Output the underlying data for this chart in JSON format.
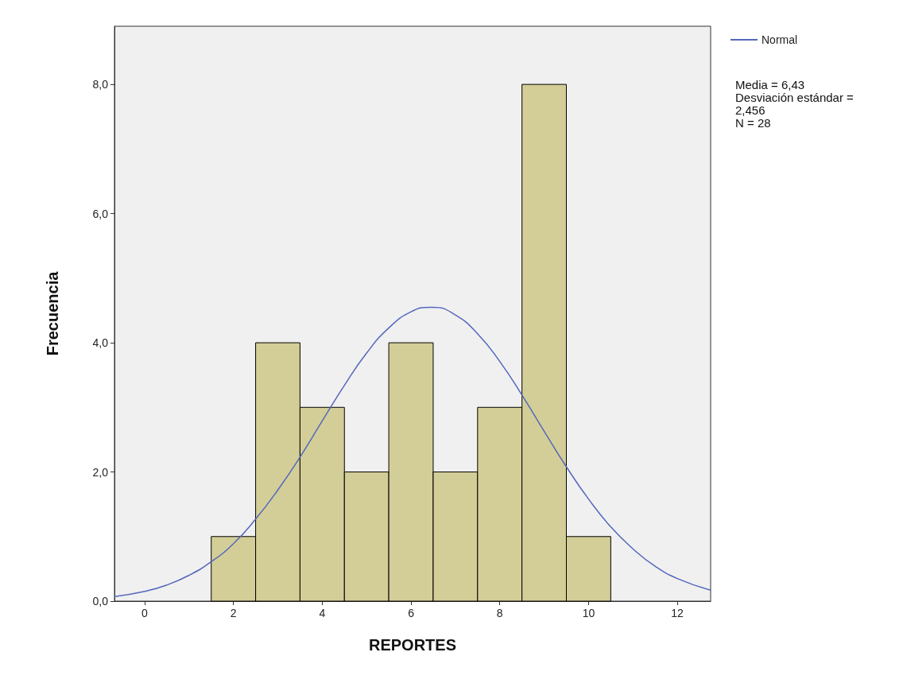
{
  "chart_data": {
    "type": "histogram",
    "xlabel": "REPORTES",
    "ylabel": "Frecuencia",
    "bins": [
      1.5,
      2.5,
      3.5,
      4.5,
      5.5,
      6.5,
      7.5,
      8.5,
      9.5,
      10.5
    ],
    "values": [
      1,
      4,
      3,
      2,
      4,
      2,
      3,
      8,
      1
    ],
    "color": "#d3ce97",
    "series": [
      {
        "name": "Normal",
        "type": "line",
        "color": "#5467bd",
        "x": [
          -0.68,
          0,
          0.5,
          1,
          1.5,
          2,
          2.5,
          3,
          3.5,
          4,
          4.5,
          5,
          5.5,
          6,
          6.43,
          6.5,
          7,
          7.5,
          8,
          8.5,
          9,
          9.5,
          10,
          10.5,
          11,
          11.5,
          12,
          12.75
        ],
        "values": [
          0.07,
          0.15,
          0.25,
          0.4,
          0.61,
          0.89,
          1.27,
          1.72,
          2.23,
          2.79,
          3.34,
          3.84,
          4.23,
          4.48,
          4.55,
          4.55,
          4.43,
          4.14,
          3.71,
          3.19,
          2.63,
          2.08,
          1.58,
          1.15,
          0.81,
          0.54,
          0.35,
          0.17
        ]
      }
    ],
    "xlim": [
      -0.68,
      12.75
    ],
    "xticks": [
      0,
      2,
      4,
      6,
      8,
      10,
      12
    ],
    "ylim": [
      0,
      8.9
    ],
    "yticks": [
      {
        "value": 0,
        "label": "0,0"
      },
      {
        "value": 2,
        "label": "2,0"
      },
      {
        "value": 4,
        "label": "4,0"
      },
      {
        "value": 6,
        "label": "6,0"
      },
      {
        "value": 8,
        "label": "8,0"
      }
    ],
    "grid": false,
    "legend": "top right",
    "annotations": [
      "Media = 6,43",
      "Desviación estándar = 2,456",
      "N = 28"
    ]
  }
}
